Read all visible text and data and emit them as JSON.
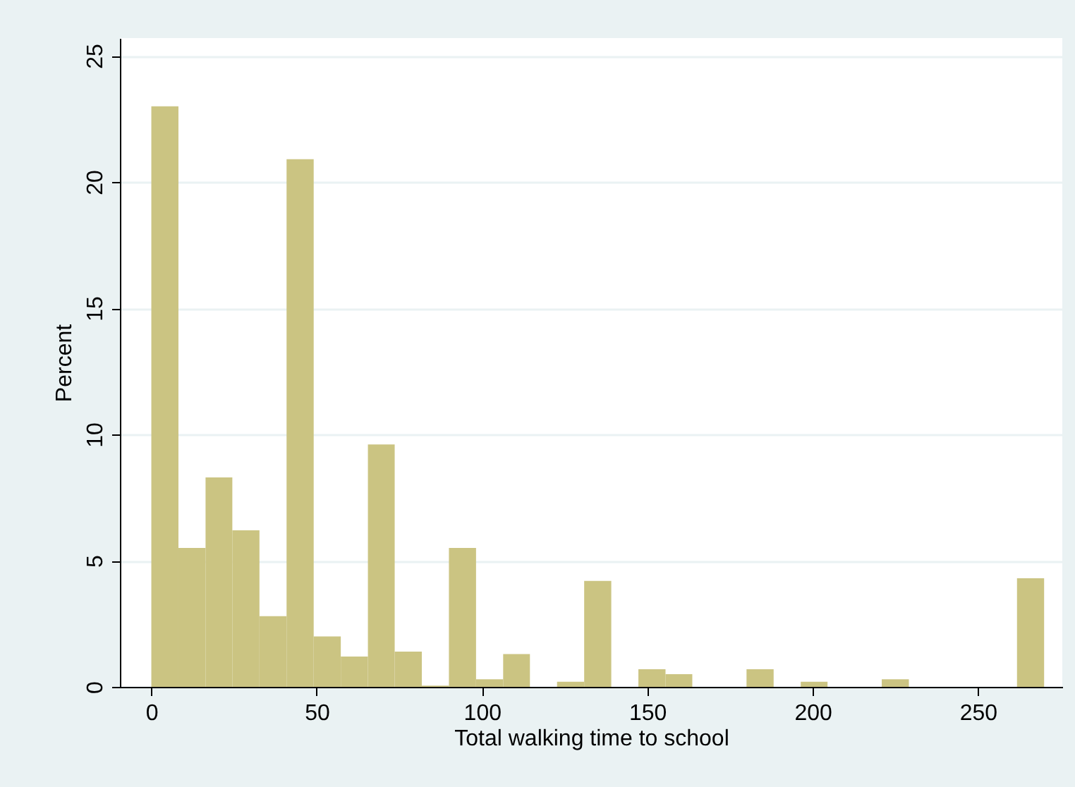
{
  "chart_data": {
    "type": "histogram",
    "xlabel": "Total walking time to school",
    "ylabel": "Percent",
    "bins": [
      0,
      8.2,
      16.4,
      24.5,
      32.7,
      40.9,
      49.1,
      57.3,
      65.5,
      73.6,
      81.8,
      90,
      98.2,
      106.4,
      114.5,
      122.7,
      130.9,
      139.1,
      147.3,
      155.5,
      163.6,
      171.8,
      180,
      188.2,
      196.4,
      204.5,
      212.7,
      220.9,
      229.1,
      237.3,
      245.5,
      253.6,
      261.8,
      270
    ],
    "values": [
      23.0,
      5.5,
      8.3,
      6.2,
      2.8,
      20.9,
      2.0,
      1.2,
      9.6,
      1.4,
      0.05,
      5.5,
      0.3,
      1.3,
      0,
      0.2,
      4.2,
      0,
      0.7,
      0.5,
      0,
      0,
      0.7,
      0,
      0.2,
      0,
      0,
      0.3,
      0,
      0,
      0,
      0,
      4.3
    ],
    "color": "#cbc482",
    "xlim": [
      -9.5,
      275.5
    ],
    "xticks": [
      0,
      50,
      100,
      150,
      200,
      250
    ],
    "ylim": [
      0,
      25.7
    ],
    "yticks": [
      0,
      5,
      10,
      15,
      20,
      25
    ],
    "grid": "y"
  }
}
